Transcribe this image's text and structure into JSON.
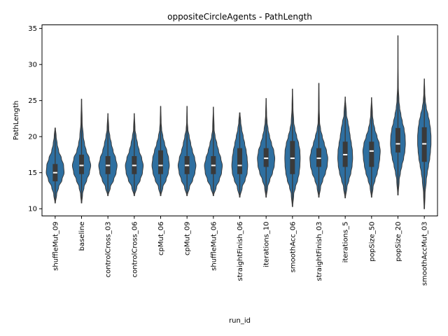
{
  "chart_data": {
    "type": "violin",
    "title": "oppositeCircleAgents - PathLength",
    "xlabel": "run_id",
    "ylabel": "PathLength",
    "ylim": [
      9,
      35.5
    ],
    "yticks": [
      10,
      15,
      20,
      25,
      30,
      35
    ],
    "color": "#2e6fa0",
    "categories": [
      "shuffleMut_09",
      "baseline",
      "controlCross_03",
      "controlCross_06",
      "cpMut_06",
      "cpMut_09",
      "shuffleMut_06",
      "straightFinish_06",
      "iterations_10",
      "smoothAcc_06",
      "straightFinish_03",
      "iterations_5",
      "popSize_50",
      "popSize_20",
      "smoothAccMut_03"
    ],
    "violins": [
      {
        "min": 10.8,
        "q1": 13.8,
        "median": 15,
        "q3": 16.2,
        "max": 21.2,
        "profile": [
          [
            10.8,
            0.02
          ],
          [
            12,
            0.12
          ],
          [
            13,
            0.28
          ],
          [
            14,
            0.55
          ],
          [
            15,
            0.72
          ],
          [
            16,
            0.68
          ],
          [
            17,
            0.5
          ],
          [
            18,
            0.28
          ],
          [
            19,
            0.16
          ],
          [
            20,
            0.08
          ],
          [
            21.2,
            0.02
          ]
        ]
      },
      {
        "min": 10.8,
        "q1": 14.8,
        "median": 16,
        "q3": 17.5,
        "max": 25.2,
        "profile": [
          [
            10.8,
            0.02
          ],
          [
            12,
            0.08
          ],
          [
            13,
            0.2
          ],
          [
            14,
            0.42
          ],
          [
            15,
            0.64
          ],
          [
            16,
            0.74
          ],
          [
            17,
            0.62
          ],
          [
            18,
            0.38
          ],
          [
            19,
            0.24
          ],
          [
            20,
            0.14
          ],
          [
            22,
            0.05
          ],
          [
            25.2,
            0.01
          ]
        ]
      },
      {
        "min": 11.8,
        "q1": 14.8,
        "median": 16,
        "q3": 17.3,
        "max": 23.2,
        "profile": [
          [
            11.8,
            0.02
          ],
          [
            13,
            0.2
          ],
          [
            14,
            0.46
          ],
          [
            15,
            0.66
          ],
          [
            16,
            0.74
          ],
          [
            17,
            0.62
          ],
          [
            18,
            0.42
          ],
          [
            19,
            0.28
          ],
          [
            20,
            0.16
          ],
          [
            21,
            0.07
          ],
          [
            23.2,
            0.01
          ]
        ]
      },
      {
        "min": 11.8,
        "q1": 14.8,
        "median": 16,
        "q3": 17.3,
        "max": 23.2,
        "profile": [
          [
            11.8,
            0.02
          ],
          [
            13,
            0.2
          ],
          [
            14,
            0.48
          ],
          [
            15,
            0.66
          ],
          [
            16,
            0.72
          ],
          [
            17,
            0.6
          ],
          [
            18,
            0.4
          ],
          [
            19,
            0.26
          ],
          [
            20,
            0.15
          ],
          [
            21,
            0.06
          ],
          [
            23.2,
            0.01
          ]
        ]
      },
      {
        "min": 11.8,
        "q1": 14.8,
        "median": 16,
        "q3": 18.1,
        "max": 24.2,
        "profile": [
          [
            11.8,
            0.02
          ],
          [
            13,
            0.18
          ],
          [
            14,
            0.44
          ],
          [
            15,
            0.62
          ],
          [
            16,
            0.7
          ],
          [
            17,
            0.64
          ],
          [
            18,
            0.5
          ],
          [
            19,
            0.32
          ],
          [
            20,
            0.18
          ],
          [
            21,
            0.08
          ],
          [
            22,
            0.04
          ],
          [
            24.2,
            0.01
          ]
        ]
      },
      {
        "min": 11.8,
        "q1": 14.8,
        "median": 16,
        "q3": 17.3,
        "max": 24.2,
        "profile": [
          [
            11.8,
            0.02
          ],
          [
            13,
            0.2
          ],
          [
            14,
            0.46
          ],
          [
            15,
            0.64
          ],
          [
            16,
            0.72
          ],
          [
            17,
            0.62
          ],
          [
            18,
            0.44
          ],
          [
            19,
            0.3
          ],
          [
            20,
            0.18
          ],
          [
            21,
            0.07
          ],
          [
            22,
            0.03
          ],
          [
            24.2,
            0.01
          ]
        ]
      },
      {
        "min": 11.8,
        "q1": 14.8,
        "median": 16,
        "q3": 17.3,
        "max": 24.1,
        "profile": [
          [
            11.8,
            0.02
          ],
          [
            13,
            0.22
          ],
          [
            14,
            0.48
          ],
          [
            15,
            0.66
          ],
          [
            16,
            0.72
          ],
          [
            17,
            0.6
          ],
          [
            18,
            0.42
          ],
          [
            19,
            0.28
          ],
          [
            20,
            0.14
          ],
          [
            21,
            0.06
          ],
          [
            24.1,
            0.01
          ]
        ]
      },
      {
        "min": 11.6,
        "q1": 14.8,
        "median": 16,
        "q3": 18.4,
        "max": 23.3,
        "profile": [
          [
            11.6,
            0.02
          ],
          [
            13,
            0.2
          ],
          [
            14,
            0.44
          ],
          [
            15,
            0.6
          ],
          [
            16,
            0.64
          ],
          [
            17,
            0.6
          ],
          [
            18,
            0.52
          ],
          [
            19,
            0.4
          ],
          [
            20,
            0.28
          ],
          [
            21,
            0.16
          ],
          [
            22,
            0.08
          ],
          [
            23.3,
            0.02
          ]
        ]
      },
      {
        "min": 11.6,
        "q1": 15.8,
        "median": 17,
        "q3": 18.4,
        "max": 25.3,
        "profile": [
          [
            11.6,
            0.02
          ],
          [
            13,
            0.12
          ],
          [
            14,
            0.3
          ],
          [
            15,
            0.52
          ],
          [
            16,
            0.66
          ],
          [
            17,
            0.7
          ],
          [
            18,
            0.62
          ],
          [
            19,
            0.44
          ],
          [
            20,
            0.28
          ],
          [
            21,
            0.16
          ],
          [
            22,
            0.08
          ],
          [
            23,
            0.04
          ],
          [
            25.3,
            0.01
          ]
        ]
      },
      {
        "min": 10.3,
        "q1": 14.8,
        "median": 17,
        "q3": 19.4,
        "max": 26.6,
        "profile": [
          [
            10.3,
            0.02
          ],
          [
            12,
            0.1
          ],
          [
            13,
            0.24
          ],
          [
            14,
            0.42
          ],
          [
            15,
            0.54
          ],
          [
            16,
            0.6
          ],
          [
            17,
            0.62
          ],
          [
            18,
            0.6
          ],
          [
            19,
            0.5
          ],
          [
            20,
            0.34
          ],
          [
            21,
            0.2
          ],
          [
            22,
            0.1
          ],
          [
            24,
            0.04
          ],
          [
            26.6,
            0.01
          ]
        ]
      },
      {
        "min": 11.6,
        "q1": 15.8,
        "median": 17,
        "q3": 18.4,
        "max": 27.4,
        "profile": [
          [
            11.6,
            0.02
          ],
          [
            13,
            0.14
          ],
          [
            14,
            0.32
          ],
          [
            15,
            0.54
          ],
          [
            16,
            0.68
          ],
          [
            17,
            0.72
          ],
          [
            18,
            0.62
          ],
          [
            19,
            0.44
          ],
          [
            20,
            0.28
          ],
          [
            21,
            0.14
          ],
          [
            22,
            0.06
          ],
          [
            24,
            0.03
          ],
          [
            27.4,
            0.01
          ]
        ]
      },
      {
        "min": 11.5,
        "q1": 15.8,
        "median": 17.5,
        "q3": 19.3,
        "max": 25.5,
        "profile": [
          [
            11.5,
            0.02
          ],
          [
            13,
            0.14
          ],
          [
            14,
            0.3
          ],
          [
            15,
            0.46
          ],
          [
            16,
            0.56
          ],
          [
            17,
            0.6
          ],
          [
            18,
            0.58
          ],
          [
            19,
            0.5
          ],
          [
            20,
            0.4
          ],
          [
            21,
            0.32
          ],
          [
            22,
            0.22
          ],
          [
            23,
            0.1
          ],
          [
            25.5,
            0.01
          ]
        ]
      },
      {
        "min": 11.6,
        "q1": 15.8,
        "median": 18,
        "q3": 19.3,
        "max": 25.4,
        "profile": [
          [
            11.6,
            0.02
          ],
          [
            13,
            0.12
          ],
          [
            14,
            0.28
          ],
          [
            15,
            0.46
          ],
          [
            16,
            0.58
          ],
          [
            17,
            0.66
          ],
          [
            18,
            0.7
          ],
          [
            19,
            0.62
          ],
          [
            20,
            0.44
          ],
          [
            21,
            0.26
          ],
          [
            22,
            0.14
          ],
          [
            23,
            0.07
          ],
          [
            25.4,
            0.01
          ]
        ]
      },
      {
        "min": 11.9,
        "q1": 17.8,
        "median": 19,
        "q3": 21.2,
        "max": 34.0,
        "profile": [
          [
            11.9,
            0.02
          ],
          [
            14,
            0.1
          ],
          [
            15,
            0.2
          ],
          [
            16,
            0.32
          ],
          [
            17,
            0.46
          ],
          [
            18,
            0.56
          ],
          [
            19,
            0.6
          ],
          [
            20,
            0.58
          ],
          [
            21,
            0.5
          ],
          [
            22,
            0.36
          ],
          [
            23,
            0.24
          ],
          [
            24,
            0.14
          ],
          [
            25,
            0.08
          ],
          [
            27,
            0.03
          ],
          [
            30,
            0.01
          ],
          [
            34.0,
            0.005
          ]
        ]
      },
      {
        "min": 10.0,
        "q1": 16.5,
        "median": 19,
        "q3": 21.3,
        "max": 28.0,
        "profile": [
          [
            10.0,
            0.02
          ],
          [
            12,
            0.06
          ],
          [
            14,
            0.16
          ],
          [
            15,
            0.24
          ],
          [
            16,
            0.34
          ],
          [
            17,
            0.44
          ],
          [
            18,
            0.5
          ],
          [
            19,
            0.54
          ],
          [
            20,
            0.54
          ],
          [
            21,
            0.5
          ],
          [
            22,
            0.42
          ],
          [
            23,
            0.3
          ],
          [
            24,
            0.16
          ],
          [
            25,
            0.08
          ],
          [
            26,
            0.04
          ],
          [
            28.0,
            0.01
          ]
        ]
      }
    ]
  }
}
